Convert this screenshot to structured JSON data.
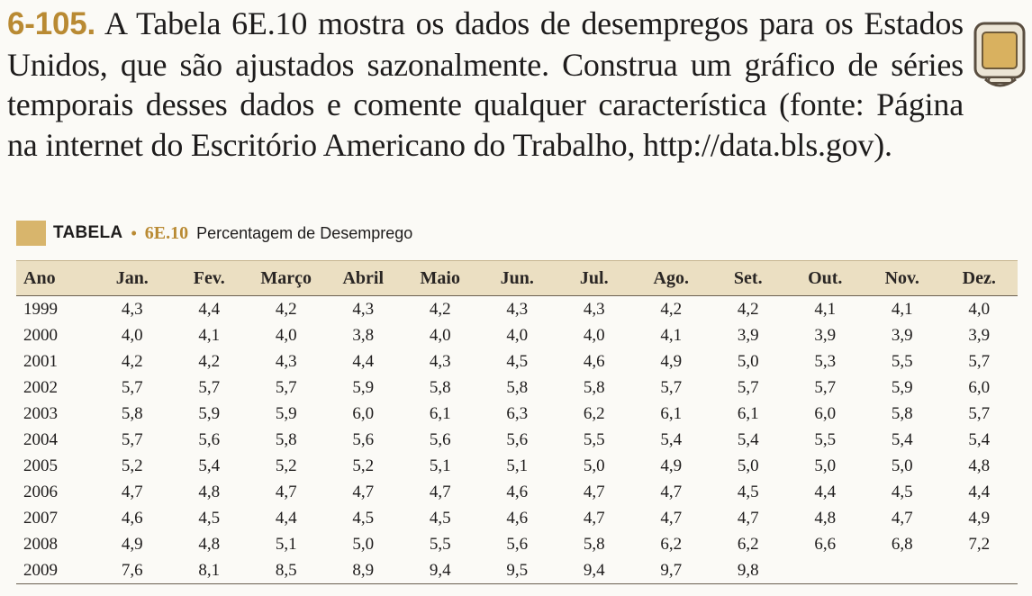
{
  "problem": {
    "number": "6-105.",
    "text": "A Tabela 6E.10 mostra os dados de desempregos para os Estados Unidos, que são ajustados sazonalmente. Construa um gráfico de séries temporais desses dados e comente qualquer característica (fonte: Página na internet do Escritório Americano do Trabalho, http://data.bls.gov)."
  },
  "icons": {
    "margin_icon": "computer-monitor-icon",
    "table_marker": "gold-square-marker"
  },
  "table": {
    "label": "TABELA",
    "bullet": "•",
    "code": "6E.10",
    "caption": "Percentagem de Desemprego",
    "headers": [
      "Ano",
      "Jan.",
      "Fev.",
      "Março",
      "Abril",
      "Maio",
      "Jun.",
      "Jul.",
      "Ago.",
      "Set.",
      "Out.",
      "Nov.",
      "Dez."
    ],
    "rows": [
      [
        "1999",
        "4,3",
        "4,4",
        "4,2",
        "4,3",
        "4,2",
        "4,3",
        "4,3",
        "4,2",
        "4,2",
        "4,1",
        "4,1",
        "4,0"
      ],
      [
        "2000",
        "4,0",
        "4,1",
        "4,0",
        "3,8",
        "4,0",
        "4,0",
        "4,0",
        "4,1",
        "3,9",
        "3,9",
        "3,9",
        "3,9"
      ],
      [
        "2001",
        "4,2",
        "4,2",
        "4,3",
        "4,4",
        "4,3",
        "4,5",
        "4,6",
        "4,9",
        "5,0",
        "5,3",
        "5,5",
        "5,7"
      ],
      [
        "2002",
        "5,7",
        "5,7",
        "5,7",
        "5,9",
        "5,8",
        "5,8",
        "5,8",
        "5,7",
        "5,7",
        "5,7",
        "5,9",
        "6,0"
      ],
      [
        "2003",
        "5,8",
        "5,9",
        "5,9",
        "6,0",
        "6,1",
        "6,3",
        "6,2",
        "6,1",
        "6,1",
        "6,0",
        "5,8",
        "5,7"
      ],
      [
        "2004",
        "5,7",
        "5,6",
        "5,8",
        "5,6",
        "5,6",
        "5,6",
        "5,5",
        "5,4",
        "5,4",
        "5,5",
        "5,4",
        "5,4"
      ],
      [
        "2005",
        "5,2",
        "5,4",
        "5,2",
        "5,2",
        "5,1",
        "5,1",
        "5,0",
        "4,9",
        "5,0",
        "5,0",
        "5,0",
        "4,8"
      ],
      [
        "2006",
        "4,7",
        "4,8",
        "4,7",
        "4,7",
        "4,7",
        "4,6",
        "4,7",
        "4,7",
        "4,5",
        "4,4",
        "4,5",
        "4,4"
      ],
      [
        "2007",
        "4,6",
        "4,5",
        "4,4",
        "4,5",
        "4,5",
        "4,6",
        "4,7",
        "4,7",
        "4,7",
        "4,8",
        "4,7",
        "4,9"
      ],
      [
        "2008",
        "4,9",
        "4,8",
        "5,1",
        "5,0",
        "5,5",
        "5,6",
        "5,8",
        "6,2",
        "6,2",
        "6,6",
        "6,8",
        "7,2"
      ],
      [
        "2009",
        "7,6",
        "8,1",
        "8,5",
        "8,9",
        "9,4",
        "9,5",
        "9,4",
        "9,7",
        "9,8",
        "",
        "",
        ""
      ]
    ]
  }
}
